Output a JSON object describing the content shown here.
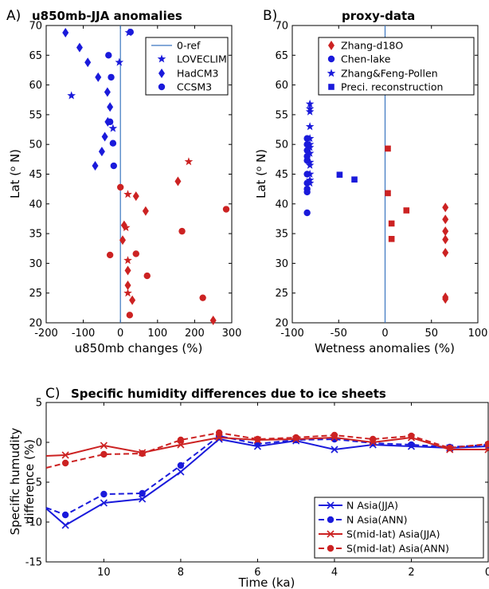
{
  "figure": {
    "panel_a": {
      "letter": "A)",
      "title": "u850mb-JJA anomalies"
    },
    "panel_b": {
      "letter": "B)",
      "title": "proxy-data"
    },
    "panel_c": {
      "letter": "C)",
      "title": "Specific humidity differences due to ice sheets"
    }
  },
  "colors": {
    "blue": "#1a1adb",
    "red": "#cc2222",
    "refline": "#3a76c0"
  },
  "chart_data": [
    {
      "id": "a",
      "type": "scatter",
      "title": "u850mb-JJA anomalies",
      "xlabel": "u850mb changes (%)",
      "ylabel": "Lat (o N)",
      "xlim": [
        -200,
        300
      ],
      "ylim": [
        20,
        70
      ],
      "xticks": [
        "-200",
        "-100",
        "0",
        "100",
        "200",
        "300"
      ],
      "yticks": [
        "20",
        "25",
        "30",
        "35",
        "40",
        "45",
        "50",
        "55",
        "60",
        "65",
        "70"
      ],
      "reference_x": 0,
      "legend": [
        "0-ref",
        "LOVECLIM",
        "HadCM3",
        "CCSM3"
      ],
      "legend_position": "top-right",
      "series": [
        {
          "name": "LOVECLIM",
          "marker": "star",
          "points": [
            [
              -132,
              58.2
            ],
            [
              -3,
              63.8
            ],
            [
              -20,
              52.7
            ],
            [
              20,
              41.6
            ],
            [
              15,
              36.0
            ],
            [
              20,
              30.5
            ],
            [
              20,
              25.0
            ],
            [
              23,
              68.8
            ],
            [
              184,
              47.1
            ]
          ],
          "color_by_hemisphere": true
        },
        {
          "name": "HadCM3",
          "marker": "diamond",
          "points": [
            [
              -148,
              68.8
            ],
            [
              -110,
              66.3
            ],
            [
              -88,
              63.8
            ],
            [
              -60,
              61.3
            ],
            [
              -35,
              58.8
            ],
            [
              -28,
              56.3
            ],
            [
              -42,
              51.3
            ],
            [
              -50,
              48.8
            ],
            [
              -68,
              46.4
            ],
            [
              -34,
              53.8
            ],
            [
              20,
              28.8
            ],
            [
              20,
              26.3
            ],
            [
              32,
              23.8
            ],
            [
              42,
              41.3
            ],
            [
              68,
              38.8
            ],
            [
              155,
              43.8
            ],
            [
              250,
              20.4
            ],
            [
              10,
              36.4
            ],
            [
              6,
              33.9
            ]
          ]
        },
        {
          "name": "CCSM3",
          "marker": "circle",
          "points": [
            [
              -32,
              65.0
            ],
            [
              -25,
              61.3
            ],
            [
              -28,
              53.8
            ],
            [
              -20,
              50.2
            ],
            [
              -18,
              46.4
            ],
            [
              -28,
              31.4
            ],
            [
              0,
              42.8
            ],
            [
              25,
              21.3
            ],
            [
              285,
              39.1
            ],
            [
              166,
              35.4
            ],
            [
              222,
              24.2
            ],
            [
              42,
              31.6
            ],
            [
              72,
              27.9
            ],
            [
              27,
              68.9
            ]
          ]
        }
      ]
    },
    {
      "id": "b",
      "type": "scatter",
      "title": "proxy-data",
      "xlabel": "Wetness anomalies (%)",
      "ylabel": "Lat (o N)",
      "xlim": [
        -100,
        100
      ],
      "ylim": [
        20,
        70
      ],
      "xticks": [
        "-100",
        "-50",
        "0",
        "50",
        "100"
      ],
      "yticks": [
        "20",
        "25",
        "30",
        "35",
        "40",
        "45",
        "50",
        "55",
        "60",
        "65",
        "70"
      ],
      "reference_x": 0,
      "legend": [
        "Zhang-d18O",
        "Chen-lake",
        "Zhang&Feng-Pollen",
        "Preci. reconstruction"
      ],
      "legend_position": "top-right",
      "series": [
        {
          "name": "Zhang-d18O",
          "marker": "diamond",
          "color": "red",
          "points": [
            [
              65,
              39.4
            ],
            [
              65,
              37.4
            ],
            [
              65,
              35.4
            ],
            [
              65,
              34.0
            ],
            [
              65,
              31.8
            ],
            [
              65,
              24.3
            ],
            [
              65,
              24.0
            ]
          ]
        },
        {
          "name": "Chen-lake",
          "marker": "circle",
          "color": "blue",
          "points": [
            [
              -84,
              51.0
            ],
            [
              -84,
              50.0
            ],
            [
              -84,
              49.0
            ],
            [
              -84,
              48.0
            ],
            [
              -84,
              47.3
            ],
            [
              -84,
              45.0
            ],
            [
              -84,
              43.5
            ],
            [
              -84,
              42.5
            ],
            [
              -84,
              42.0
            ],
            [
              -84,
              38.5
            ]
          ]
        },
        {
          "name": "Zhang&Feng-Pollen",
          "marker": "star",
          "color": "blue",
          "points": [
            [
              -81,
              56.8
            ],
            [
              -81,
              56.0
            ],
            [
              -81,
              55.5
            ],
            [
              -81,
              53.0
            ],
            [
              -81,
              51.0
            ],
            [
              -81,
              50.0
            ],
            [
              -81,
              49.5
            ],
            [
              -81,
              48.5
            ],
            [
              -81,
              47.0
            ],
            [
              -81,
              46.5
            ],
            [
              -81,
              45.0
            ],
            [
              -81,
              44.0
            ],
            [
              -81,
              43.5
            ]
          ]
        },
        {
          "name": "Preci. reconstruction",
          "marker": "square",
          "color_by_value": true,
          "points": [
            [
              -49,
              44.9
            ],
            [
              -33,
              44.1
            ],
            [
              3,
              49.3
            ],
            [
              3,
              41.8
            ],
            [
              7,
              36.7
            ],
            [
              7,
              34.1
            ],
            [
              23,
              38.9
            ]
          ]
        }
      ]
    },
    {
      "id": "c",
      "type": "line",
      "title": "Specific humidity differences due to ice sheets",
      "xlabel": "Time (ka)",
      "ylabel": "Specific humudity difference (%)",
      "xlim": [
        11.5,
        0
      ],
      "ylim": [
        -15,
        5
      ],
      "xticks": [
        "10",
        "8",
        "6",
        "4",
        "2",
        "0"
      ],
      "yticks": [
        "-15",
        "-10",
        "-5",
        "0",
        "5"
      ],
      "legend_position": "bottom-right",
      "x": [
        11.5,
        11,
        10,
        9,
        8,
        7,
        6,
        5,
        4,
        3,
        2,
        1,
        0
      ],
      "series": [
        {
          "name": "N Asia(JJA)",
          "color": "blue",
          "style": "solid",
          "marker": "x",
          "values": [
            -8.3,
            -10.4,
            -7.6,
            -7.1,
            -3.7,
            0.4,
            -0.5,
            0.2,
            -0.9,
            -0.3,
            -0.5,
            -0.7,
            -0.5
          ]
        },
        {
          "name": "N Asia(ANN)",
          "color": "blue",
          "style": "dashed",
          "marker": "circle",
          "values": [
            -8.2,
            -9.1,
            -6.5,
            -6.4,
            -2.9,
            0.8,
            -0.2,
            0.3,
            0.4,
            -0.1,
            -0.3,
            -0.6,
            -0.3
          ]
        },
        {
          "name": "S(mid-lat) Asia(JJA)",
          "color": "red",
          "style": "solid",
          "marker": "x",
          "values": [
            -1.7,
            -1.6,
            -0.4,
            -1.3,
            -0.3,
            0.6,
            0.3,
            0.4,
            0.6,
            0.0,
            0.6,
            -0.9,
            -0.9
          ]
        },
        {
          "name": "S(mid-lat) Asia(ANN)",
          "color": "red",
          "style": "dashed",
          "marker": "circle",
          "values": [
            -3.2,
            -2.6,
            -1.5,
            -1.4,
            0.3,
            1.2,
            0.4,
            0.6,
            0.9,
            0.4,
            0.8,
            -0.7,
            -0.2
          ]
        }
      ]
    }
  ]
}
